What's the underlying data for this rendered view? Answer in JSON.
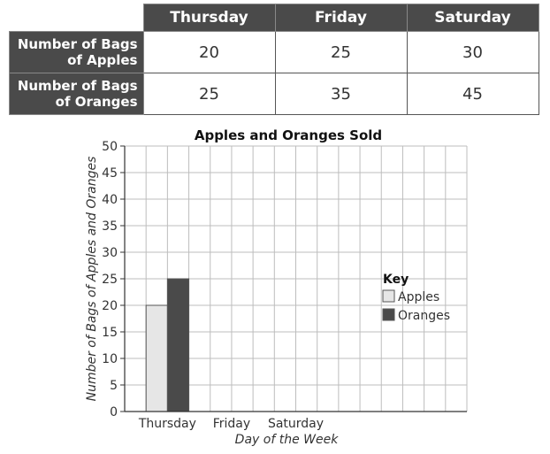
{
  "table": {
    "days": [
      "Thursday",
      "Friday",
      "Saturday"
    ],
    "rows": [
      {
        "label_line1": "Number of Bags",
        "label_line2": "of Apples",
        "values": [
          "20",
          "25",
          "30"
        ]
      },
      {
        "label_line1": "Number of Bags",
        "label_line2": "of Oranges",
        "values": [
          "25",
          "35",
          "45"
        ]
      }
    ]
  },
  "chart_data": {
    "type": "bar",
    "title": "Apples and Oranges Sold",
    "xlabel": "Day of the Week",
    "ylabel": "Number of Bags of Apples and Oranges",
    "categories": [
      "Thursday",
      "Friday",
      "Saturday"
    ],
    "series": [
      {
        "name": "Apples",
        "values": [
          20,
          null,
          null
        ],
        "color": "#e6e6e6"
      },
      {
        "name": "Oranges",
        "values": [
          25,
          null,
          null
        ],
        "color": "#4a4a4a"
      }
    ],
    "ylim": [
      0,
      50
    ],
    "yticks": [
      0,
      5,
      10,
      15,
      20,
      25,
      30,
      35,
      40,
      45,
      50
    ],
    "grid": true,
    "legend": {
      "title": "Key",
      "position": "right"
    }
  }
}
